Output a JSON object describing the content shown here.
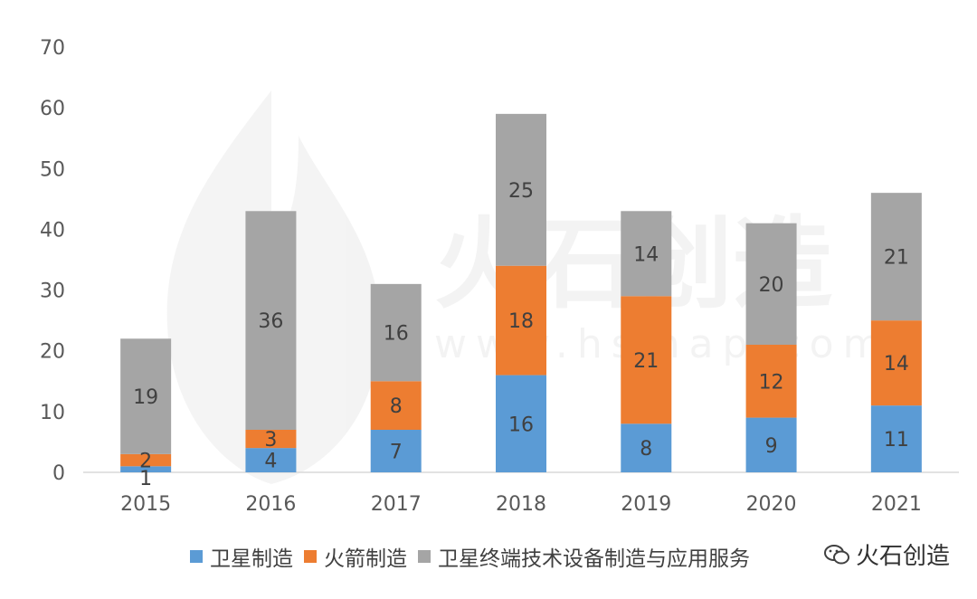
{
  "chart_data": {
    "type": "bar",
    "stacked": true,
    "categories": [
      "2015",
      "2016",
      "2017",
      "2018",
      "2019",
      "2020",
      "2021"
    ],
    "series": [
      {
        "name": "卫星制造",
        "color": "#5b9bd5",
        "values": [
          1,
          4,
          7,
          16,
          8,
          9,
          11
        ]
      },
      {
        "name": "火箭制造",
        "color": "#ed7d31",
        "values": [
          2,
          3,
          8,
          18,
          21,
          12,
          14
        ]
      },
      {
        "name": "卫星终端技术设备制造与应用服务",
        "color": "#a5a5a5",
        "values": [
          19,
          36,
          16,
          25,
          14,
          20,
          21
        ]
      }
    ],
    "yticks": [
      "0",
      "10",
      "20",
      "30",
      "40",
      "50",
      "60",
      "70"
    ],
    "ylim": [
      0,
      70
    ],
    "grid": false,
    "legend_position": "bottom"
  },
  "watermark": {
    "text": "火石创造",
    "url": "www.hsmap.com",
    "badge_text": "火石创造"
  }
}
